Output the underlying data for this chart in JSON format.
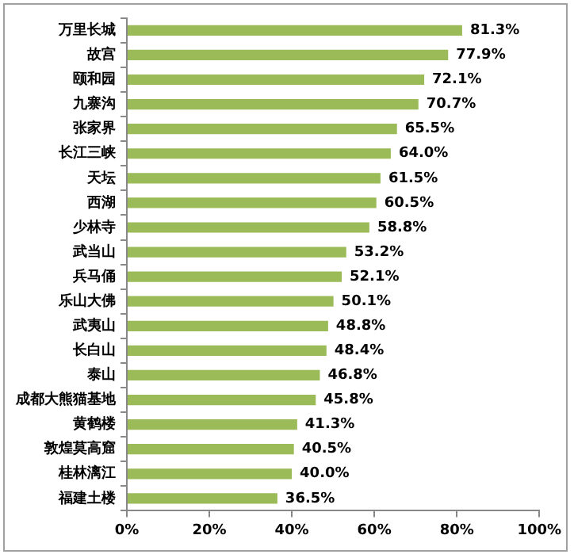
{
  "chart_data": {
    "type": "bar",
    "orientation": "horizontal",
    "categories": [
      "万里长城",
      "故宫",
      "颐和园",
      "九寨沟",
      "张家界",
      "长江三峡",
      "天坛",
      "西湖",
      "少林寺",
      "武当山",
      "兵马俑",
      "乐山大佛",
      "武夷山",
      "长白山",
      "泰山",
      "成都大熊猫基地",
      "黄鹤楼",
      "敦煌莫高窟",
      "桂林漓江",
      "福建土楼"
    ],
    "values": [
      81.3,
      77.9,
      72.1,
      70.7,
      65.5,
      64.0,
      61.5,
      60.5,
      58.8,
      53.2,
      52.1,
      50.1,
      48.8,
      48.4,
      46.8,
      45.8,
      41.3,
      40.5,
      40.0,
      36.5
    ],
    "value_labels": [
      "81.3%",
      "77.9%",
      "72.1%",
      "70.7%",
      "65.5%",
      "64.0%",
      "61.5%",
      "60.5%",
      "58.8%",
      "53.2%",
      "52.1%",
      "50.1%",
      "48.8%",
      "48.4%",
      "46.8%",
      "45.8%",
      "41.3%",
      "40.5%",
      "40.0%",
      "36.5%"
    ],
    "color": "#9bbb59",
    "xlim": [
      0,
      100
    ],
    "xticks": [
      {
        "value": 0,
        "label": "0%"
      },
      {
        "value": 20,
        "label": "20%"
      },
      {
        "value": 40,
        "label": "40%"
      },
      {
        "value": 60,
        "label": "60%"
      },
      {
        "value": 80,
        "label": "80%"
      },
      {
        "value": 100,
        "label": "100%"
      }
    ],
    "grid": false,
    "legend": false
  }
}
